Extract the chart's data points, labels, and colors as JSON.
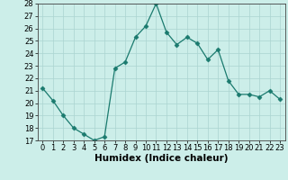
{
  "x": [
    0,
    1,
    2,
    3,
    4,
    5,
    6,
    7,
    8,
    9,
    10,
    11,
    12,
    13,
    14,
    15,
    16,
    17,
    18,
    19,
    20,
    21,
    22,
    23
  ],
  "y": [
    21.2,
    20.2,
    19.0,
    18.0,
    17.5,
    17.0,
    17.3,
    22.8,
    23.3,
    25.3,
    26.2,
    28.0,
    25.7,
    24.7,
    25.3,
    24.8,
    23.5,
    24.3,
    21.8,
    20.7,
    20.7,
    20.5,
    21.0,
    20.3
  ],
  "line_color": "#1a7a6e",
  "marker": "D",
  "marker_size": 2.5,
  "bg_color": "#cceee9",
  "grid_color": "#aad4d0",
  "xlabel": "Humidex (Indice chaleur)",
  "ylim": [
    17,
    28
  ],
  "xlim": [
    -0.5,
    23.5
  ],
  "yticks": [
    17,
    18,
    19,
    20,
    21,
    22,
    23,
    24,
    25,
    26,
    27,
    28
  ],
  "xticks": [
    0,
    1,
    2,
    3,
    4,
    5,
    6,
    7,
    8,
    9,
    10,
    11,
    12,
    13,
    14,
    15,
    16,
    17,
    18,
    19,
    20,
    21,
    22,
    23
  ],
  "tick_fontsize": 6.0,
  "xlabel_fontsize": 7.5
}
